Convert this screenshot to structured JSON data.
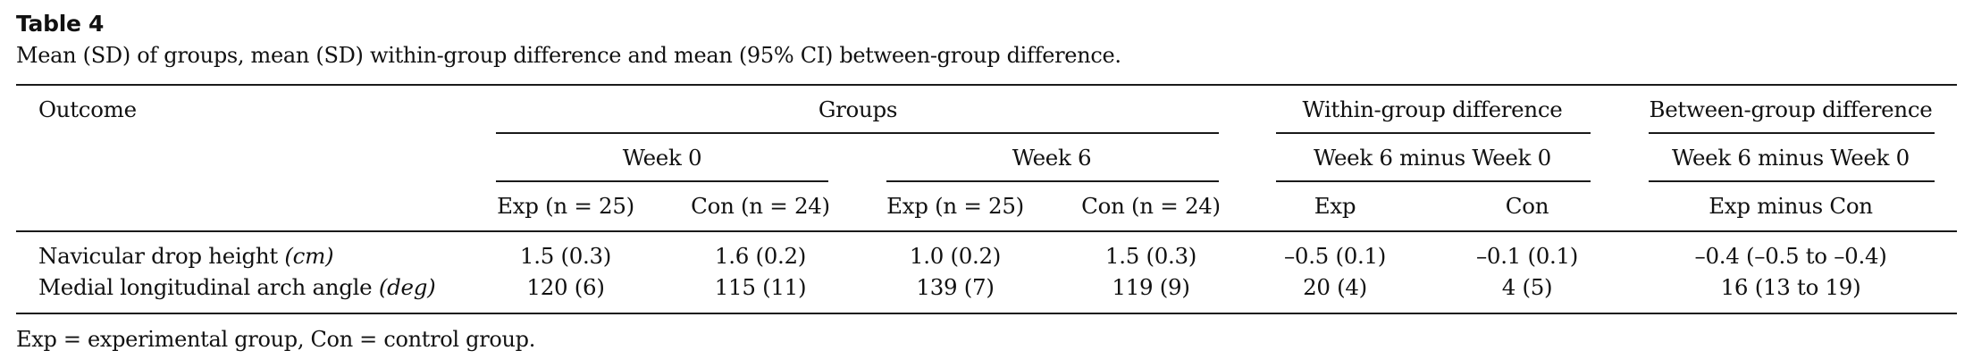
{
  "table": {
    "title": "Table 4",
    "caption": "Mean (SD) of groups, mean (SD) within-group difference and mean (95% CI) between-group difference.",
    "header": {
      "outcome": "Outcome",
      "groups": "Groups",
      "within": "Within-group difference",
      "between": "Between-group difference",
      "week0": "Week 0",
      "week6": "Week 6",
      "within_sub": "Week 6 minus Week 0",
      "between_sub": "Week 6 minus Week 0",
      "cols": [
        "Exp (n = 25)",
        "Con (n = 24)",
        "Exp (n = 25)",
        "Con (n = 24)",
        "Exp",
        "Con",
        "Exp minus Con"
      ]
    },
    "rows": [
      {
        "name": "Navicular drop height",
        "unit": "(cm)",
        "values": [
          "1.5 (0.3)",
          "1.6 (0.2)",
          "1.0 (0.2)",
          "1.5 (0.3)",
          "–0.5 (0.1)",
          "–0.1 (0.1)",
          "–0.4 (–0.5 to –0.4)"
        ]
      },
      {
        "name": "Medial longitudinal arch angle",
        "unit": "(deg)",
        "values": [
          "120 (6)",
          "115 (11)",
          "139 (7)",
          "119 (9)",
          "20 (4)",
          "4 (5)",
          "16 (13 to 19)"
        ]
      }
    ],
    "footnote": "Exp = experimental group, Con = control group."
  }
}
